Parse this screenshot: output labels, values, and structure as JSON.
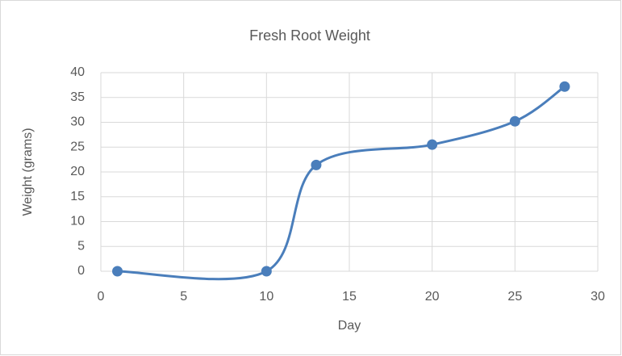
{
  "chart_data": {
    "type": "scatter",
    "title": "Fresh Root Weight",
    "x_label": "Day",
    "y_label": "Weight (grams)",
    "series": [
      {
        "name": "Fresh Root Weight",
        "color": "#4a7ebb",
        "smooth": true,
        "x": [
          1,
          10,
          13,
          20,
          25,
          28
        ],
        "values": [
          0,
          0,
          21.4,
          25.5,
          30.2,
          37.2
        ]
      }
    ],
    "xlim": [
      0,
      30
    ],
    "xticks": [
      0,
      5,
      10,
      15,
      20,
      25,
      30
    ],
    "ylim": [
      0,
      40
    ],
    "yticks": [
      0,
      5,
      10,
      15,
      20,
      25,
      30,
      35,
      40
    ],
    "grid": true
  }
}
